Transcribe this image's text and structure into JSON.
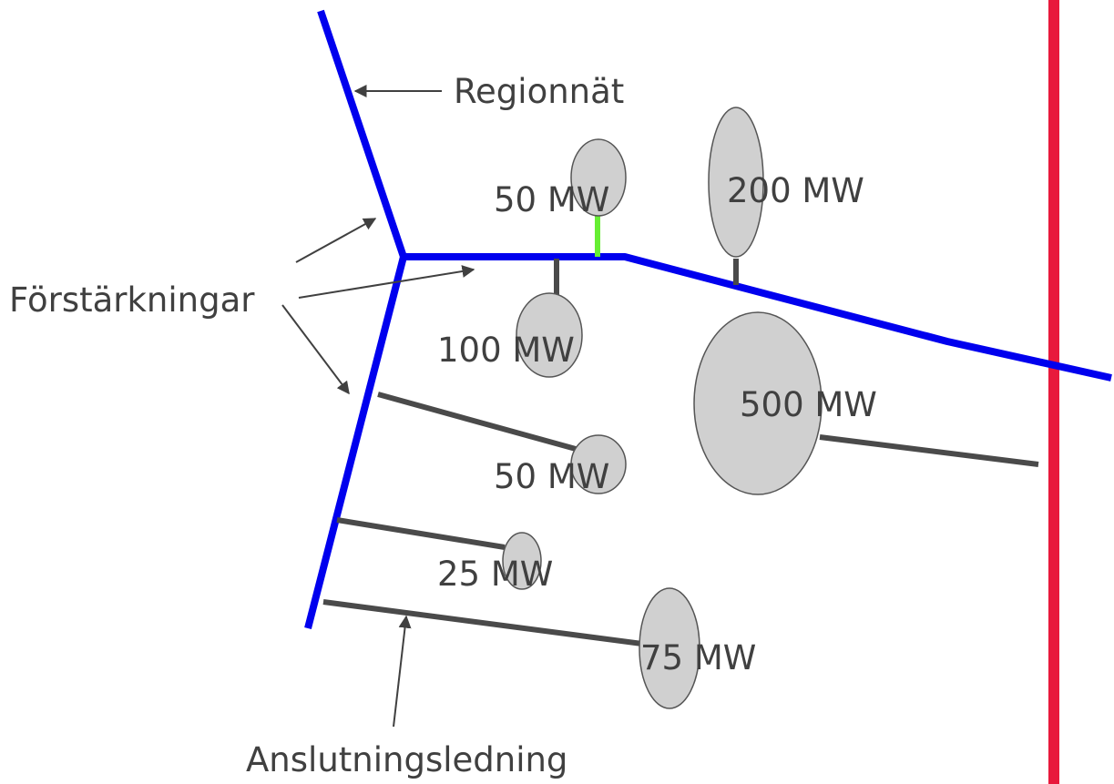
{
  "labels": {
    "regionnat": "Regionnät",
    "forstarkningar": "Förstärkningar",
    "anslutningsledning": "Anslutningsledning"
  },
  "nodes": [
    {
      "label": "50 MW"
    },
    {
      "label": "200 MW"
    },
    {
      "label": "100 MW"
    },
    {
      "label": "500 MW"
    },
    {
      "label": "50 MW"
    },
    {
      "label": "25 MW"
    },
    {
      "label": "75 MW"
    }
  ]
}
